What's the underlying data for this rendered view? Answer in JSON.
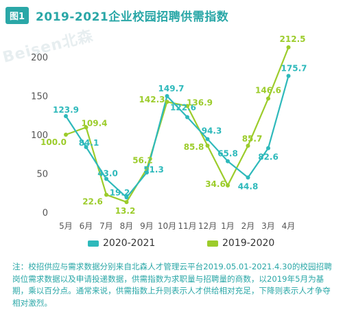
{
  "figure_tag": "图1",
  "title": "2019-2021企业校园招聘供需指数",
  "watermark_text": "Beisen北森",
  "colors": {
    "series_a": "#2eb9bb",
    "series_b": "#9ccc2b",
    "axis_text": "#555555",
    "grid": "#d9d9d9"
  },
  "note": "注：校招供应与需求数据分别来自北森人才管理云平台2019.05.01-2021.4.30的校园招聘岗位需求数据以及申请投递数据，供需指数为求职量与招聘量的商数，以2019年5月为基期，乘以百分点。通常来说，供需指数上升则表示人才供给相对充足，下降则表示人才争夺相对激烈。",
  "chart_data": {
    "type": "line",
    "categories": [
      "5月",
      "6月",
      "7月",
      "8月",
      "9月",
      "10月",
      "11月",
      "12月",
      "1月",
      "2月",
      "3月",
      "4月"
    ],
    "ylim": [
      0,
      225
    ],
    "yticks": [
      0,
      50,
      100,
      150,
      200
    ],
    "grid": false,
    "legend_position": "bottom",
    "series": [
      {
        "name": "2020-2021",
        "values": [
          123.9,
          84.1,
          43.0,
          19.2,
          51.3,
          149.7,
          122.6,
          94.3,
          65.8,
          44.8,
          82.6,
          175.7
        ]
      },
      {
        "name": "2019-2020",
        "values": [
          100.0,
          109.4,
          22.6,
          13.2,
          56.2,
          142.3,
          136.9,
          85.8,
          34.6,
          85.7,
          146.6,
          212.5
        ]
      }
    ]
  }
}
